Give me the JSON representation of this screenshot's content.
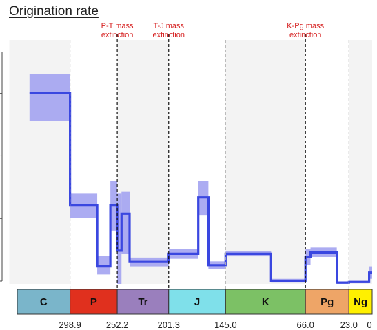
{
  "title": "Origination rate",
  "chart_data": {
    "type": "line",
    "title": "Origination rate",
    "xlabel": "",
    "ylabel": "",
    "xlim": [
      360,
      0
    ],
    "ylim": [
      0,
      0.39
    ],
    "x_reversed": true,
    "grid": false,
    "series_color": "#3a47e0",
    "band_color": "#9e9ef0",
    "annotations": [
      {
        "lines": [
          "P-T mass",
          "extinction"
        ],
        "x": 252.2
      },
      {
        "lines": [
          "T-J mass",
          "extinction"
        ],
        "x": 201.3
      },
      {
        "lines": [
          "K-Pg mass",
          "extinction"
        ],
        "x": 66.0
      }
    ],
    "mass_extinctions": [
      252.2,
      201.3,
      66.0
    ],
    "period_boundaries": [
      298.9,
      252.2,
      201.3,
      145.0,
      66.0,
      23.0
    ],
    "x_tick_labels": [
      {
        "x": 298.9,
        "label": "298.9"
      },
      {
        "x": 252.2,
        "label": "252.2"
      },
      {
        "x": 201.3,
        "label": "201.3"
      },
      {
        "x": 145.0,
        "label": "145.0"
      },
      {
        "x": 66.0,
        "label": "66.0"
      },
      {
        "x": 23.0,
        "label": "23.0"
      },
      {
        "x": 0,
        "label": "0"
      }
    ],
    "periods": [
      {
        "name": "C",
        "start": 359,
        "end": 298.9,
        "color": "#7ab5ca"
      },
      {
        "name": "P",
        "start": 298.9,
        "end": 252.2,
        "color": "#e0301e"
      },
      {
        "name": "Tr",
        "start": 252.2,
        "end": 201.3,
        "color": "#9a7fbd"
      },
      {
        "name": "J",
        "start": 201.3,
        "end": 145.0,
        "color": "#7fe0ea"
      },
      {
        "name": "K",
        "start": 145.0,
        "end": 66.0,
        "color": "#7cc165"
      },
      {
        "name": "Pg",
        "start": 66.0,
        "end": 23.0,
        "color": "#eea567"
      },
      {
        "name": "Ng",
        "start": 23.0,
        "end": 0,
        "color": "#fff000"
      }
    ],
    "steps": [
      {
        "x0": 339,
        "x1": 298.9,
        "y": 0.305,
        "lo": 0.26,
        "hi": 0.335
      },
      {
        "x0": 298.9,
        "x1": 272,
        "y": 0.126,
        "lo": 0.105,
        "hi": 0.145
      },
      {
        "x0": 272,
        "x1": 259,
        "y": 0.028,
        "lo": 0.015,
        "hi": 0.045
      },
      {
        "x0": 259,
        "x1": 252.2,
        "y": 0.126,
        "lo": 0.085,
        "hi": 0.165
      },
      {
        "x0": 252.2,
        "x1": 248,
        "y": 0.053,
        "lo": 0.0,
        "hi": 0.145
      },
      {
        "x0": 248,
        "x1": 240,
        "y": 0.112,
        "lo": 0.048,
        "hi": 0.148
      },
      {
        "x0": 240,
        "x1": 201.3,
        "y": 0.035,
        "lo": 0.028,
        "hi": 0.042
      },
      {
        "x0": 201.3,
        "x1": 172,
        "y": 0.048,
        "lo": 0.04,
        "hi": 0.056
      },
      {
        "x0": 172,
        "x1": 162,
        "y": 0.138,
        "lo": 0.11,
        "hi": 0.165
      },
      {
        "x0": 162,
        "x1": 145.0,
        "y": 0.03,
        "lo": 0.024,
        "hi": 0.036
      },
      {
        "x0": 145.0,
        "x1": 100,
        "y": 0.048,
        "lo": 0.044,
        "hi": 0.052
      },
      {
        "x0": 100,
        "x1": 66.0,
        "y": 0.005,
        "lo": 0.002,
        "hi": 0.008
      },
      {
        "x0": 66.0,
        "x1": 61,
        "y": 0.043,
        "lo": 0.03,
        "hi": 0.055
      },
      {
        "x0": 61,
        "x1": 35,
        "y": 0.05,
        "lo": 0.043,
        "hi": 0.058
      },
      {
        "x0": 35,
        "x1": 23.0,
        "y": 0.002,
        "lo": 0.0,
        "hi": 0.004
      },
      {
        "x0": 23.0,
        "x1": 3,
        "y": 0.003,
        "lo": 0.001,
        "hi": 0.005
      },
      {
        "x0": 3,
        "x1": 0,
        "y": 0.018,
        "lo": 0.008,
        "hi": 0.028
      }
    ]
  }
}
